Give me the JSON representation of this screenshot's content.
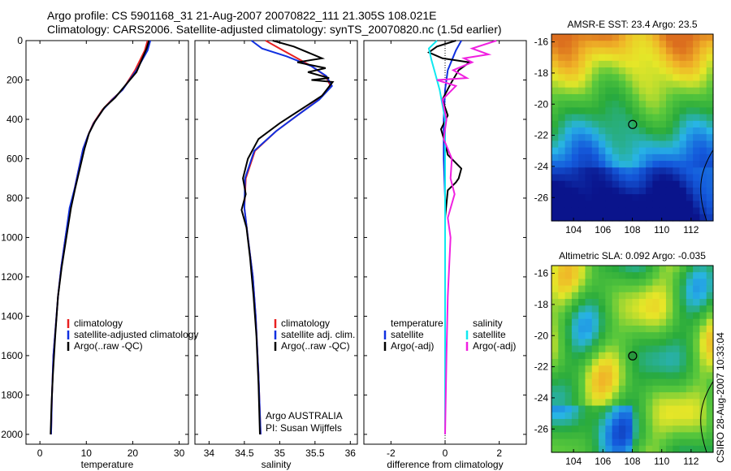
{
  "header": {
    "line1": "Argo profile: CS 5901168_31 21-Aug-2007 20070822_111 21.305S 108.021E",
    "line2": "Climatology: CARS2006. Satellite-adjusted climatology: synTS_20070820.nc (1.5d earlier)"
  },
  "side_label": "CSIRO 28-Aug-2007 10:33:04",
  "colors": {
    "clim": "#e82020",
    "sat": "#1030e0",
    "argo": "#000000",
    "sat_s": "#10e8f0",
    "argo_s": "#f020e0"
  },
  "chart_data": [
    {
      "type": "line",
      "xlabel": "temperature",
      "xlim": [
        -3,
        32
      ],
      "ylim": [
        2050,
        0
      ],
      "xticks": [
        0,
        10,
        20,
        30
      ],
      "yticks": [
        0,
        200,
        400,
        600,
        800,
        1000,
        1200,
        1400,
        1600,
        1800,
        2000
      ],
      "legend": [
        "climatology",
        "satellite-adjusted climatology",
        "Argo(..raw -QC)"
      ],
      "legend_placement": "lower-right",
      "series": [
        {
          "name": "climatology",
          "color": "#e82020",
          "x": [
            23.2,
            22.6,
            20.5,
            17.8,
            15.5,
            13.5,
            11.5,
            10.4,
            9.3,
            8.4,
            7.5,
            6.5,
            5.5,
            4.6,
            3.9,
            3.4,
            2.9,
            2.6,
            2.4
          ],
          "y": [
            0,
            50,
            150,
            250,
            300,
            350,
            420,
            480,
            550,
            650,
            750,
            850,
            1000,
            1150,
            1300,
            1450,
            1600,
            1800,
            2000
          ]
        },
        {
          "name": "satellite-adjusted climatology",
          "color": "#1030e0",
          "x": [
            23.8,
            23.2,
            20.8,
            17.8,
            15.6,
            13.6,
            11.6,
            10.4,
            9.3,
            8.4,
            7.5,
            6.4,
            5.5,
            4.6,
            3.9,
            3.4,
            2.9,
            2.6,
            2.4
          ],
          "y": [
            0,
            50,
            150,
            250,
            300,
            350,
            420,
            480,
            550,
            650,
            750,
            850,
            1000,
            1150,
            1300,
            1450,
            1600,
            1800,
            2000
          ]
        },
        {
          "name": "Argo(..raw -QC)",
          "color": "#000000",
          "x": [
            23.5,
            23.0,
            21.9,
            20.8,
            18.3,
            16.2,
            13.9,
            11.9,
            10.6,
            9.6,
            8.6,
            7.6,
            6.7,
            5.7,
            4.7,
            3.9,
            3.3,
            2.8,
            2.5,
            2.3
          ],
          "y": [
            0,
            40,
            100,
            160,
            230,
            290,
            340,
            410,
            470,
            550,
            650,
            750,
            850,
            1000,
            1150,
            1300,
            1500,
            1700,
            1850,
            2000
          ]
        }
      ]
    },
    {
      "type": "line",
      "xlabel": "salinity",
      "xlim": [
        33.8,
        36.1
      ],
      "ylim": [
        2050,
        0
      ],
      "xticks": [
        34,
        34.5,
        35,
        35.5,
        36
      ],
      "yticks": [
        0,
        200,
        400,
        600,
        800,
        1000,
        1200,
        1400,
        1600,
        1800,
        2000
      ],
      "legend": [
        "climatology",
        "satellite adj. clim.",
        "Argo(..raw -QC)"
      ],
      "legend_placement": "lower-right",
      "annotation": [
        "Argo AUSTRALIA",
        "PI: Susan Wijffels"
      ],
      "series": [
        {
          "name": "climatology",
          "color": "#e82020",
          "x": [
            34.8,
            35.0,
            35.2,
            35.45,
            35.65,
            35.72,
            35.55,
            35.25,
            34.95,
            34.65,
            34.52,
            34.5,
            34.55,
            34.62,
            34.66,
            34.7,
            34.73
          ],
          "y": [
            0,
            40,
            80,
            130,
            180,
            230,
            300,
            380,
            460,
            560,
            700,
            850,
            1000,
            1200,
            1400,
            1700,
            2000
          ]
        },
        {
          "name": "satellite adj. clim.",
          "color": "#1030e0",
          "x": [
            34.6,
            34.75,
            35.1,
            35.45,
            35.66,
            35.74,
            35.56,
            35.25,
            34.95,
            34.64,
            34.51,
            34.5,
            34.55,
            34.62,
            34.66,
            34.7,
            34.73
          ],
          "y": [
            0,
            40,
            80,
            130,
            180,
            230,
            300,
            380,
            460,
            560,
            700,
            850,
            1000,
            1200,
            1400,
            1700,
            2000
          ]
        },
        {
          "name": "Argo(..raw -QC)",
          "color": "#000000",
          "x": [
            34.9,
            35.2,
            35.6,
            35.25,
            35.65,
            35.4,
            35.7,
            35.45,
            35.75,
            35.6,
            35.3,
            35.0,
            34.7,
            34.55,
            34.48,
            34.52,
            34.46,
            34.53,
            34.58,
            34.63,
            34.67,
            34.7,
            34.72
          ],
          "y": [
            0,
            30,
            90,
            110,
            140,
            160,
            190,
            200,
            210,
            280,
            350,
            420,
            500,
            600,
            700,
            780,
            860,
            950,
            1100,
            1300,
            1500,
            1750,
            2000
          ]
        }
      ]
    },
    {
      "type": "line",
      "xlabel": "difference from climatology",
      "xlim": [
        -3.0,
        3.0
      ],
      "ylim": [
        2050,
        0
      ],
      "xticks": [
        -2,
        0,
        2
      ],
      "yticks": [
        0,
        200,
        400,
        600,
        800,
        1000,
        1200,
        1400,
        1600,
        1800,
        2000
      ],
      "legend_titles": [
        "temperature",
        "salinity"
      ],
      "legend": [
        "satellite",
        "Argo(-adj)",
        "satellite",
        "Argo(-adj)"
      ],
      "legend_placement": "lower",
      "series": [
        {
          "name": "temperature satellite",
          "color": "#1030e0",
          "x": [
            0.6,
            0.4,
            0.1,
            0.0,
            -0.05,
            -0.05,
            0.0,
            0.0,
            0.0,
            0.0,
            0.0,
            0.0
          ],
          "y": [
            0,
            50,
            150,
            250,
            400,
            600,
            800,
            1000,
            1300,
            1600,
            1800,
            2000
          ]
        },
        {
          "name": "temperature Argo(-adj)",
          "color": "#000000",
          "x": [
            0.4,
            -0.3,
            -0.6,
            -0.1,
            0.9,
            0.5,
            0.2,
            -0.1,
            0.1,
            -0.15,
            0.0,
            0.1,
            0.6,
            0.5,
            0.4,
            0.1,
            0.0,
            0.0,
            0.0,
            0.0
          ],
          "y": [
            0,
            30,
            60,
            90,
            110,
            150,
            220,
            300,
            380,
            450,
            520,
            580,
            650,
            700,
            720,
            760,
            900,
            1200,
            1600,
            2000
          ]
        },
        {
          "name": "salinity satellite",
          "color": "#10e8f0",
          "x": [
            -0.3,
            -0.6,
            -0.5,
            -0.4,
            -0.2,
            0.0,
            0.0,
            0.0,
            0.0,
            0.0
          ],
          "y": [
            0,
            40,
            100,
            150,
            250,
            400,
            800,
            1200,
            1600,
            2000
          ]
        },
        {
          "name": "salinity Argo(-adj)",
          "color": "#f020e0",
          "x": [
            1.9,
            1.0,
            1.6,
            0.7,
            1.0,
            0.3,
            0.8,
            -0.3,
            0.4,
            -0.1,
            0.05,
            -0.05,
            0.25,
            0.2,
            0.35,
            0.1,
            0.2,
            0.1,
            0.05,
            0.0
          ],
          "y": [
            0,
            40,
            70,
            90,
            110,
            150,
            190,
            200,
            230,
            300,
            400,
            500,
            600,
            700,
            780,
            900,
            1000,
            1300,
            1600,
            2000
          ]
        }
      ]
    },
    {
      "type": "heatmap",
      "title": "AMSR-E SST: 23.4 Argo: 23.5",
      "xlim": [
        102.5,
        113.5
      ],
      "ylim": [
        -27.5,
        -15.5
      ],
      "xticks": [
        104,
        106,
        108,
        110,
        112
      ],
      "yticks": [
        -16,
        -18,
        -20,
        -22,
        -24,
        -26
      ],
      "marker": [
        108.021,
        -21.305
      ]
    },
    {
      "type": "heatmap",
      "title": "Altimetric SLA: 0.092 Argo: -0.035",
      "xlim": [
        102.5,
        113.5
      ],
      "ylim": [
        -27.5,
        -15.5
      ],
      "xticks": [
        104,
        106,
        108,
        110,
        112
      ],
      "yticks": [
        -16,
        -18,
        -20,
        -22,
        -24,
        -26
      ],
      "marker": [
        108.021,
        -21.305
      ]
    }
  ]
}
